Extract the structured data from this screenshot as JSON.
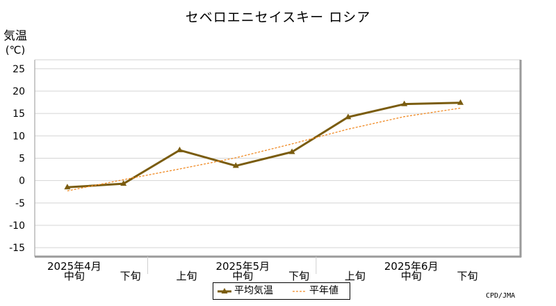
{
  "chart_data": {
    "type": "line",
    "title": "セベロエニセイスキー ロシア",
    "ylabel": "気温",
    "yunit": "(℃)",
    "ylim": [
      -17,
      27
    ],
    "yticks": [
      25,
      20,
      15,
      10,
      5,
      0,
      -5,
      -10,
      -15
    ],
    "grid": true,
    "categories": [
      "2025年4月 中旬",
      "2025年4月 下旬",
      "2025年5月 上旬",
      "2025年5月 中旬",
      "2025年5月 下旬",
      "2025年6月 上旬",
      "2025年6月 中旬",
      "2025年6月 下旬"
    ],
    "x_sub_labels": [
      "中旬",
      "下旬",
      "上旬",
      "中旬",
      "下旬",
      "上旬",
      "中旬",
      "下旬"
    ],
    "x_month_labels": [
      {
        "label": "2025年4月",
        "index": 0
      },
      {
        "label": "2025年5月",
        "index": 3
      },
      {
        "label": "2025年6月",
        "index": 6
      }
    ],
    "series": [
      {
        "name": "平均気温",
        "style": "solid-triangle",
        "color": "#7a5c0f",
        "values": [
          -1.5,
          -0.7,
          6.8,
          3.3,
          6.4,
          14.2,
          17.1,
          17.4
        ]
      },
      {
        "name": "平年値",
        "style": "dashed",
        "color": "#f08a24",
        "values": [
          -2.3,
          0.2,
          2.6,
          5.1,
          8.2,
          11.5,
          14.3,
          16.2
        ]
      }
    ],
    "legend": "bottom-center",
    "source": "CPD/JMA"
  }
}
